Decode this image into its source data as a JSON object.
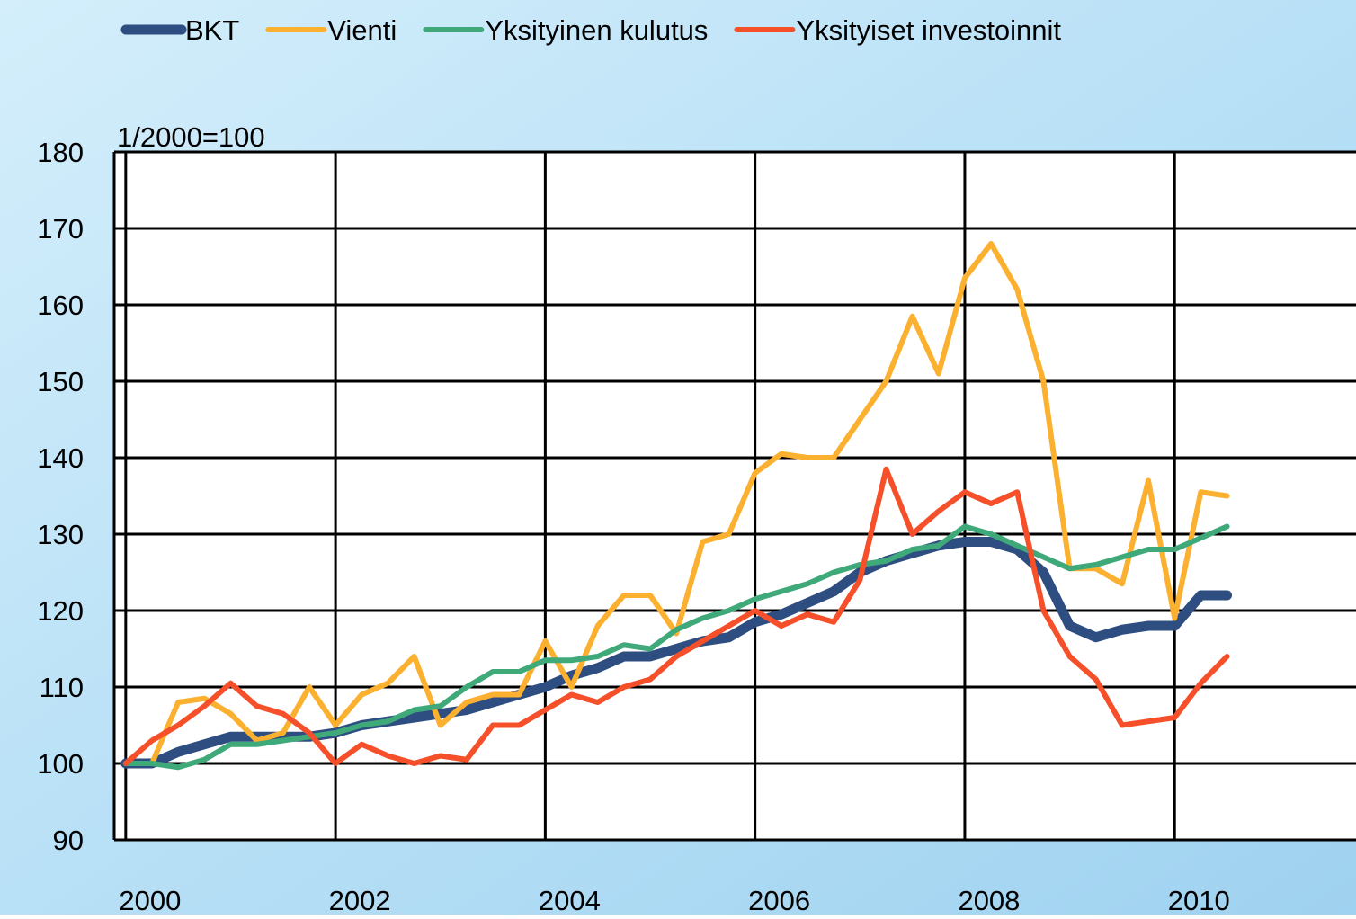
{
  "chart_data": {
    "type": "line",
    "ylabel": "1/2000=100",
    "x": [
      2000,
      2000.25,
      2000.5,
      2000.75,
      2001,
      2001.25,
      2001.5,
      2001.75,
      2002,
      2002.25,
      2002.5,
      2002.75,
      2003,
      2003.25,
      2003.5,
      2003.75,
      2004,
      2004.25,
      2004.5,
      2004.75,
      2005,
      2005.25,
      2005.5,
      2005.75,
      2006,
      2006.25,
      2006.5,
      2006.75,
      2007,
      2007.25,
      2007.5,
      2007.75,
      2008,
      2008.25,
      2008.5,
      2008.75,
      2009,
      2009.25,
      2009.5,
      2009.75,
      2010,
      2010.25,
      2010.5
    ],
    "series": [
      {
        "name": "BKT",
        "color": "#2e4d80",
        "width": 11,
        "values": [
          100,
          100,
          101.5,
          102.5,
          103.5,
          103.5,
          103.5,
          103.5,
          104,
          105,
          105.5,
          106,
          106.5,
          107,
          108,
          109,
          110,
          111.5,
          112.5,
          114,
          114,
          115,
          116,
          116.5,
          118.5,
          119.5,
          121,
          122.5,
          125,
          126.5,
          127.5,
          128.5,
          129,
          129,
          128,
          125,
          118,
          116.5,
          117.5,
          118,
          118,
          122,
          122
        ]
      },
      {
        "name": "Vienti",
        "color": "#fbb030",
        "width": 6,
        "values": [
          100,
          100,
          108,
          108.5,
          106.5,
          103,
          104,
          110,
          105,
          109,
          110.5,
          114,
          105,
          108,
          109,
          109,
          116,
          110,
          118,
          122,
          122,
          117,
          129,
          130,
          138,
          140.5,
          140,
          140,
          145,
          150,
          158.5,
          151,
          163.5,
          168,
          162,
          150,
          125.5,
          125.5,
          123.5,
          137,
          119,
          135.5,
          135
        ]
      },
      {
        "name": "Yksityinen kulutus",
        "color": "#3fa97a",
        "width": 6,
        "values": [
          100,
          100,
          99.5,
          100.5,
          102.5,
          102.5,
          103,
          103.5,
          104,
          105,
          105.5,
          107,
          107.5,
          110,
          112,
          112,
          113.5,
          113.5,
          114,
          115.5,
          115,
          117.5,
          119,
          120,
          121.5,
          122.5,
          123.5,
          125,
          126,
          126.5,
          128,
          128.5,
          131,
          130,
          128.5,
          127,
          125.5,
          126,
          127,
          128,
          128,
          129.5,
          131
        ]
      },
      {
        "name": "Yksityiset investoinnit",
        "color": "#f5502a",
        "width": 6,
        "values": [
          100,
          103,
          105,
          107.5,
          110.5,
          107.5,
          106.5,
          104,
          100,
          102.5,
          101,
          100,
          101,
          100.5,
          105,
          105,
          107,
          109,
          108,
          110,
          111,
          114,
          116,
          118,
          120,
          118,
          119.5,
          118.5,
          124,
          138.5,
          130,
          133,
          135.5,
          134,
          135.5,
          120,
          114,
          111,
          105,
          105.5,
          106,
          110.5,
          114
        ]
      }
    ],
    "xlim": [
      1999.89,
      2011.73
    ],
    "xticks": [
      2000,
      2002,
      2004,
      2006,
      2008,
      2010
    ],
    "ylim": [
      90,
      180
    ],
    "yticks": [
      90,
      100,
      110,
      120,
      130,
      140,
      150,
      160,
      170,
      180
    ],
    "grid": true,
    "legend": "top"
  }
}
